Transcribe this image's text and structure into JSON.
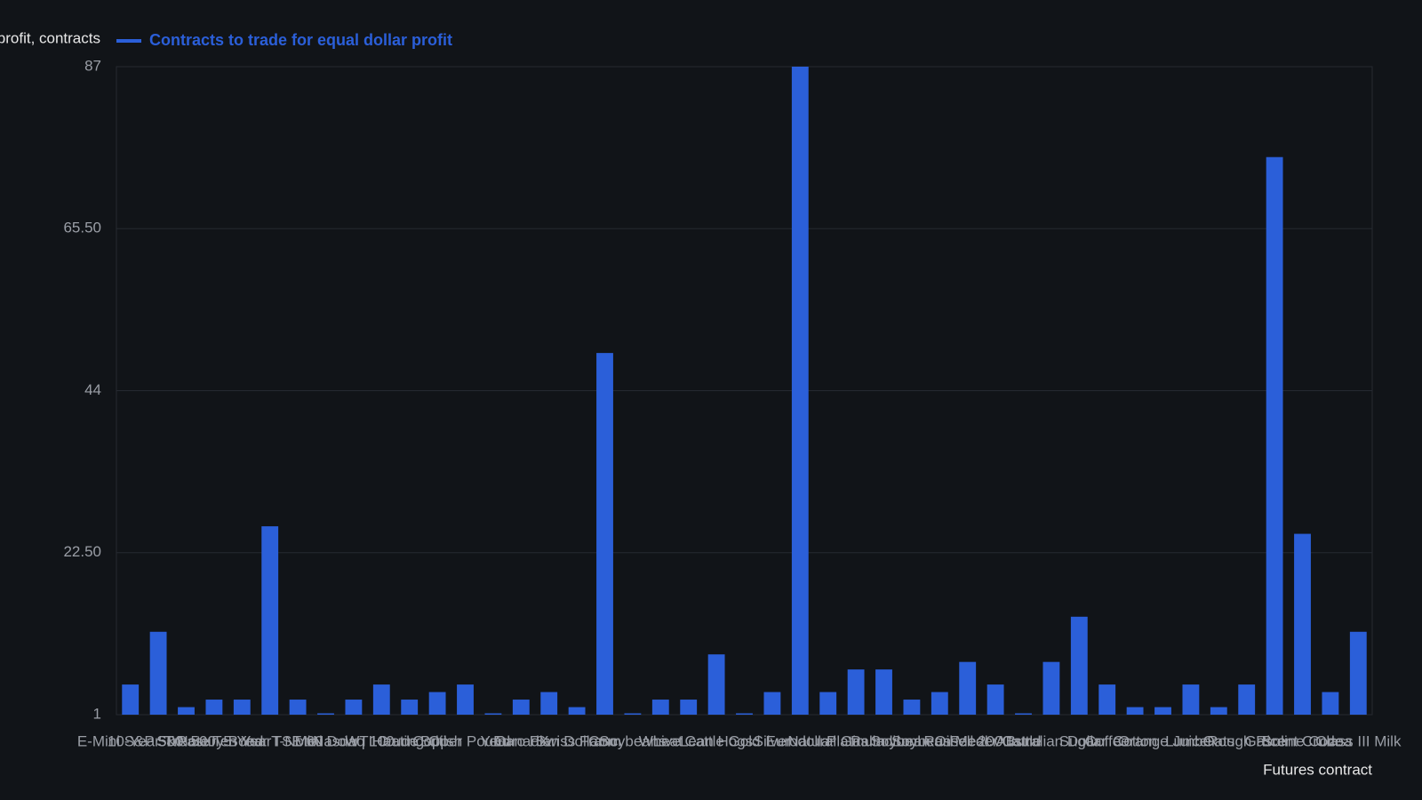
{
  "chart_data": {
    "type": "bar",
    "y_axis_label": "Contracts to trade for equal dollar profit, contracts",
    "x_axis_label": "Futures contract",
    "legend": "top-left",
    "color": "#2b5fd9",
    "grid": true,
    "series": [
      {
        "name": "Contracts to trade for equal dollar profit",
        "color": "#2b5fd9",
        "values": [
          5,
          12,
          2,
          3,
          3,
          26,
          3,
          1,
          3,
          5,
          3,
          4,
          5,
          1,
          3,
          4,
          2,
          49,
          1,
          3,
          3,
          9,
          1,
          4,
          87,
          4,
          7,
          7,
          3,
          4,
          8,
          5,
          1,
          8,
          14,
          5,
          2,
          2,
          5,
          2,
          5,
          75,
          25,
          4,
          12
        ]
      }
    ],
    "categories": [
      "E-Mini S&P 500",
      "10-Year T-Note",
      "S&P 500",
      "Treasury Bond",
      "Ten Year",
      "5-Year T-Note",
      "TSE 60",
      "Mini Dow",
      "Nasdaq 100",
      "WTI Crude",
      "Heating Oil",
      "Copper",
      "British Pound",
      "Yen",
      "Euro FX",
      "Canadian Dollar",
      "Swiss Franc",
      "Corn",
      "Soybeans",
      "Wheat",
      "Live Cattle",
      "Lean Hogs",
      "Gold",
      "Silver",
      "Eurodollar",
      "Natural Gas",
      "Platinum",
      "Palladium",
      "Soybean Oil",
      "Soybean Meal",
      "Russell 2000",
      "Feeder Cattle",
      "Bund",
      "Australian Dollar",
      "Sugar",
      "Coffee",
      "Cotton",
      "Orange Juice",
      "Lumber",
      "Oats",
      "Rough Rice",
      "Gasoline",
      "Brent Crude",
      "Cocoa",
      "Class III Milk"
    ],
    "ylim": [
      1,
      87
    ],
    "yticks": [
      1,
      {
        "value": 22.5,
        "label": "22.50"
      },
      44,
      {
        "value": 65.5,
        "label": "65.50"
      },
      87
    ]
  }
}
